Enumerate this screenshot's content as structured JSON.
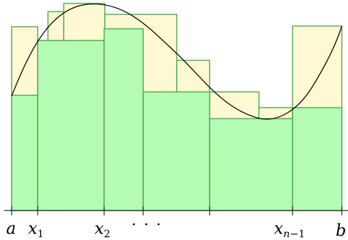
{
  "figure": {
    "labels": {
      "a": "a",
      "x1_base": "x",
      "x1_sub": "1",
      "x2_base": "x",
      "x2_sub": "2",
      "dots": "· · ·",
      "xn1_base": "x",
      "xn1_sub_n": "n",
      "xn1_sub_rest": "−1",
      "b": "b"
    },
    "colors": {
      "upper_sum_fill": "#fef9d2",
      "lower_sum_fill": "#b4fbb4",
      "rect_stroke": "#3aa13a",
      "curve": "#000000"
    }
  }
}
